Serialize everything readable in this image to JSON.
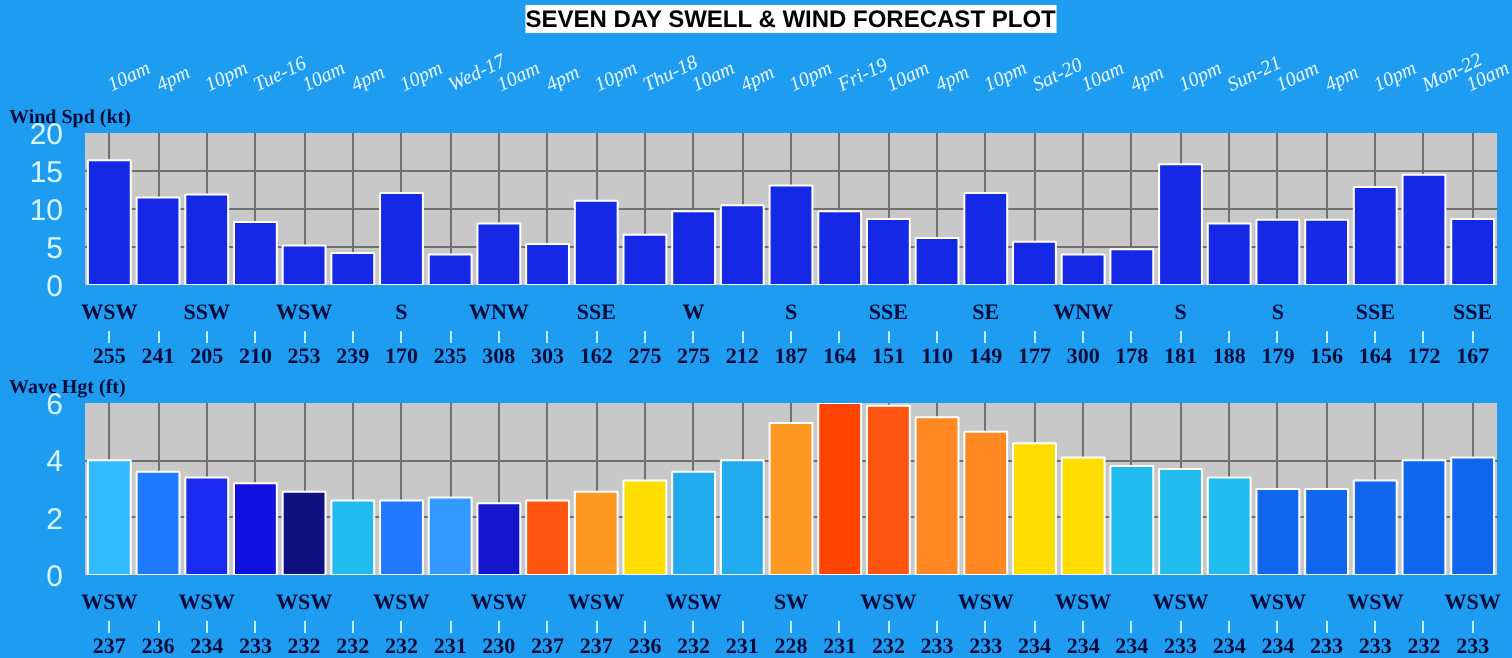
{
  "chart_data": [
    {
      "type": "bar",
      "title": "SEVEN DAY SWELL & WIND FORECAST PLOT",
      "ylabel": "Wind Spd (kt)",
      "categories": [
        "10am",
        "4pm",
        "10pm",
        "Tue-16",
        "10am",
        "4pm",
        "10pm",
        "Wed-17",
        "10am",
        "4pm",
        "10pm",
        "Thu-18",
        "10am",
        "4pm",
        "10pm",
        "Fri-19",
        "10am",
        "4pm",
        "10pm",
        "Sat-20",
        "10am",
        "4pm",
        "10pm",
        "Sun-21",
        "10am",
        "4pm",
        "10pm",
        "Mon-22",
        "10am"
      ],
      "values": [
        16.4,
        11.5,
        11.9,
        8.3,
        5.2,
        4.2,
        12.1,
        4.0,
        8.1,
        5.4,
        11.1,
        6.6,
        9.7,
        10.5,
        13.1,
        9.7,
        8.7,
        6.2,
        12.1,
        5.7,
        4.0,
        4.7,
        15.9,
        8.1,
        8.6,
        8.6,
        12.9,
        14.5,
        8.7
      ],
      "color": "#1428e6",
      "ylim": [
        0,
        20
      ],
      "yticks": [
        0,
        5,
        10,
        15,
        20
      ],
      "grid": true,
      "annotations": [
        "255",
        "241",
        "205",
        "210",
        "253",
        "239",
        "170",
        "235",
        "308",
        "303",
        "162",
        "275",
        "275",
        "212",
        "187",
        "164",
        "151",
        "110",
        "149",
        "177",
        "300",
        "178",
        "181",
        "188",
        "179",
        "156",
        "164",
        "172",
        "167",
        "WSW",
        "SSW",
        "WSW",
        "S",
        "WNW",
        "SSE",
        "W",
        "S",
        "SSE",
        "SE",
        "WNW",
        "S",
        "S",
        "SSE",
        "SSE"
      ]
    },
    {
      "type": "bar",
      "ylabel": "Wave Hgt (ft)",
      "categories": [
        null,
        null,
        null,
        null,
        null,
        null,
        null,
        null,
        null,
        null,
        null,
        null,
        null,
        null,
        null,
        null,
        null,
        null,
        null,
        null,
        null,
        null,
        null,
        null,
        null,
        null,
        null,
        null,
        null
      ],
      "values": [
        4.0,
        3.6,
        3.4,
        3.2,
        2.9,
        2.6,
        2.6,
        2.7,
        2.5,
        2.6,
        2.9,
        3.3,
        3.6,
        4.0,
        5.3,
        6.0,
        5.9,
        5.5,
        5.0,
        4.6,
        4.1,
        3.8,
        3.7,
        3.4,
        3.0,
        3.0,
        3.3,
        4.0,
        4.1
      ],
      "colors": [
        "#33bbff",
        "#1e7bff",
        "#1a2aef",
        "#1010e0",
        "#101080",
        "#22bbee",
        "#2277ff",
        "#3399ff",
        "#1515cc",
        "#ff5511",
        "#ff9922",
        "#ffdd00",
        "#22aaee",
        "#22aaee",
        "#ff9922",
        "#ff4400",
        "#ff5511",
        "#ff8822",
        "#ff8822",
        "#ffdd00",
        "#ffdd00",
        "#22bbee",
        "#22bbee",
        "#22bbee",
        "#1166ee",
        "#1166ee",
        "#1166ee",
        "#1166ee",
        "#1166ee"
      ],
      "ylim": [
        0,
        6
      ],
      "yticks": [
        0,
        2,
        4,
        6
      ],
      "grid": true,
      "annotations": [
        "237",
        "236",
        "234",
        "233",
        "232",
        "232",
        "232",
        "231",
        "230",
        "237",
        "237",
        "236",
        "232",
        "231",
        "228",
        "231",
        "232",
        "233",
        "233",
        "234",
        "234",
        "234",
        "233",
        "234",
        "234",
        "233",
        "233",
        "232",
        "233",
        "WSW",
        "WSW",
        "WSW",
        "WSW",
        "WSW",
        "WSW",
        "WSW",
        "SW",
        "WSW",
        "WSW",
        "WSW",
        "WSW",
        "WSW",
        "WSW",
        "WSW"
      ]
    }
  ]
}
